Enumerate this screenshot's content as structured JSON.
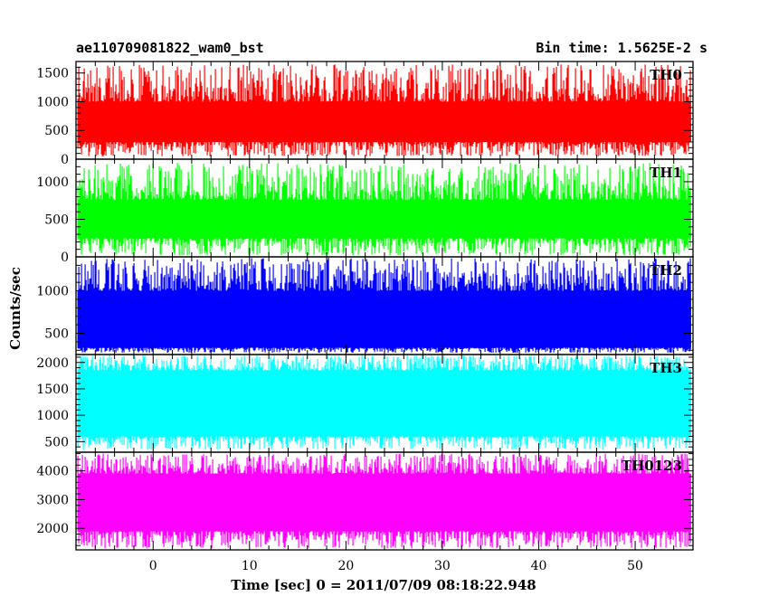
{
  "header": {
    "title": "ae110709081822_wam0_bst",
    "bin_time": "Bin time: 1.5625E-2 s"
  },
  "chart_data": {
    "type": "line",
    "xlabel": "Time [sec] 0 = 2011/07/09 08:18:22.948",
    "ylabel": "Counts/sec",
    "xlim": [
      -8,
      56
    ],
    "x_ticks": [
      0,
      10,
      20,
      30,
      40,
      50
    ],
    "data_x_range": [
      -7.8,
      55.8
    ],
    "series": [
      {
        "name": "TH0",
        "color": "#ff0000",
        "ylim": [
          0,
          1700
        ],
        "y_ticks": [
          0,
          500,
          1000,
          1500
        ],
        "typical_range": [
          300,
          1000
        ],
        "extreme_range": [
          50,
          1650
        ]
      },
      {
        "name": "TH1",
        "color": "#00ff00",
        "ylim": [
          0,
          1300
        ],
        "y_ticks": [
          0,
          500,
          1000
        ],
        "typical_range": [
          250,
          760
        ],
        "extreme_range": [
          20,
          1250
        ]
      },
      {
        "name": "TH2",
        "color": "#0000ff",
        "ylim": [
          250,
          1400
        ],
        "y_ticks": [
          500,
          1000
        ],
        "typical_range": [
          330,
          1000
        ],
        "extreme_range": [
          270,
          1390
        ]
      },
      {
        "name": "TH3",
        "color": "#00ffff",
        "ylim": [
          300,
          2150
        ],
        "y_ticks": [
          500,
          1000,
          1500,
          2000
        ],
        "typical_range": [
          600,
          1850
        ],
        "extreme_range": [
          350,
          2140
        ]
      },
      {
        "name": "TH0123",
        "color": "#ff00ff",
        "ylim": [
          1250,
          4650
        ],
        "y_ticks": [
          2000,
          3000,
          4000
        ],
        "typical_range": [
          1900,
          3900
        ],
        "extreme_range": [
          1300,
          4600
        ]
      }
    ]
  }
}
